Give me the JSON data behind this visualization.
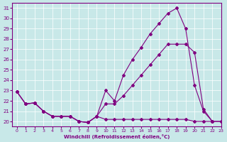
{
  "xlabel": "Windchill (Refroidissement éolien,°C)",
  "bg_color": "#c8e8e8",
  "line_color": "#800080",
  "xlim": [
    -0.5,
    23
  ],
  "ylim": [
    19.5,
    31.5
  ],
  "yticks": [
    20,
    21,
    22,
    23,
    24,
    25,
    26,
    27,
    28,
    29,
    30,
    31
  ],
  "xticks": [
    0,
    1,
    2,
    3,
    4,
    5,
    6,
    7,
    8,
    9,
    10,
    11,
    12,
    13,
    14,
    15,
    16,
    17,
    18,
    19,
    20,
    21,
    22,
    23
  ],
  "series1_x": [
    0,
    1,
    2,
    3,
    4,
    5,
    6,
    7,
    8,
    9,
    10,
    11,
    12,
    13,
    14,
    15,
    16,
    17,
    18,
    19,
    20,
    21,
    22,
    23
  ],
  "series1_y": [
    22.9,
    21.7,
    21.8,
    21.0,
    20.5,
    20.5,
    20.5,
    20.0,
    19.9,
    20.5,
    20.2,
    20.2,
    20.2,
    20.2,
    20.2,
    20.2,
    20.2,
    20.2,
    20.2,
    20.2,
    20.0,
    20.0,
    20.0,
    20.0
  ],
  "series2_x": [
    0,
    1,
    2,
    3,
    4,
    5,
    6,
    7,
    8,
    9,
    10,
    11,
    12,
    13,
    14,
    15,
    16,
    17,
    18,
    19,
    20,
    21,
    22,
    23
  ],
  "series2_y": [
    22.9,
    21.7,
    21.8,
    21.0,
    20.5,
    20.5,
    20.5,
    20.0,
    19.9,
    20.5,
    21.7,
    21.7,
    22.5,
    23.5,
    24.5,
    25.5,
    26.5,
    27.5,
    27.5,
    27.5,
    26.7,
    21.2,
    20.0,
    null
  ],
  "series3_x": [
    0,
    1,
    2,
    3,
    4,
    5,
    6,
    7,
    8,
    9,
    10,
    11,
    12,
    13,
    14,
    15,
    16,
    17,
    18,
    19,
    20,
    21,
    22,
    23
  ],
  "series3_y": [
    22.9,
    21.7,
    21.8,
    21.0,
    20.5,
    20.5,
    20.5,
    20.0,
    19.9,
    20.5,
    23.0,
    22.0,
    24.5,
    26.0,
    27.2,
    28.5,
    29.5,
    30.5,
    31.0,
    29.0,
    23.5,
    21.0,
    20.0,
    20.0
  ]
}
